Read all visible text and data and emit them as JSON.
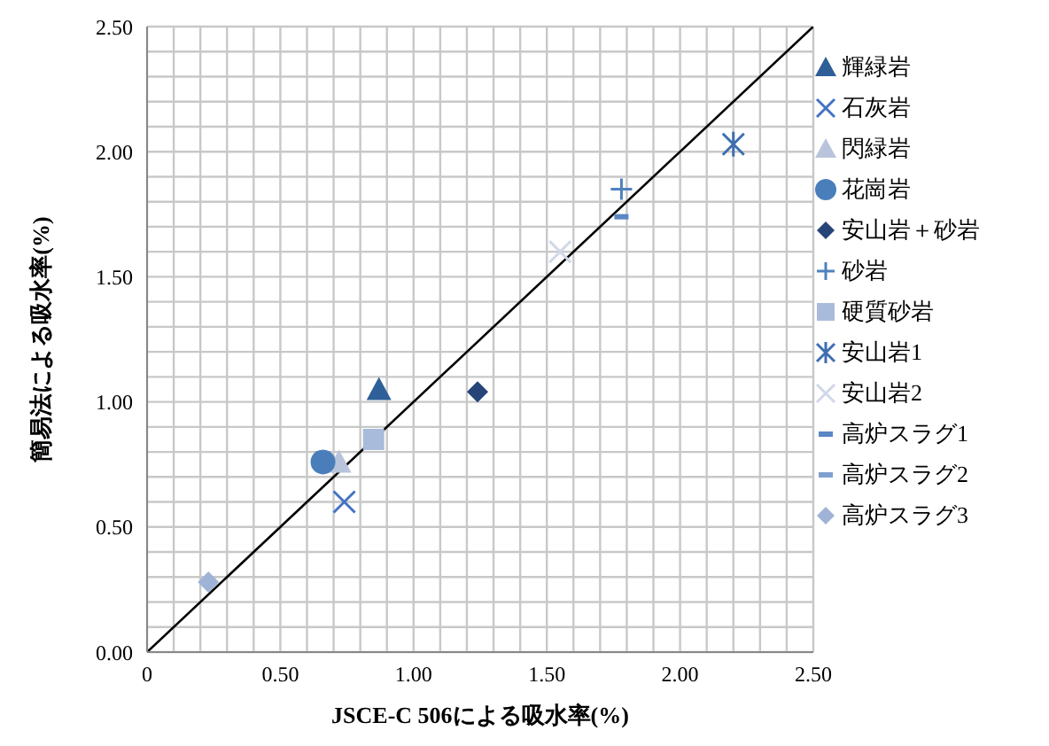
{
  "chart_data": {
    "type": "scatter",
    "xlabel": "JSCE-C 506による吸水率(%)",
    "ylabel": "簡易法による吸水率(%)",
    "xlim": [
      0,
      2.5
    ],
    "ylim": [
      0,
      2.5
    ],
    "xticks": [
      0,
      {
        "value": 0.1,
        "label": null
      },
      {
        "value": 0.2,
        "label": null
      },
      {
        "value": 0.3,
        "label": null
      },
      {
        "value": 0.4,
        "label": null
      },
      {
        "value": 0.5,
        "label": "0.50"
      },
      {
        "value": 0.6,
        "label": null
      },
      {
        "value": 0.7,
        "label": null
      },
      {
        "value": 0.8,
        "label": null
      },
      {
        "value": 0.9,
        "label": null
      },
      {
        "value": 1,
        "label": "1.00"
      },
      {
        "value": 1.1,
        "label": null
      },
      {
        "value": 1.2,
        "label": null
      },
      {
        "value": 1.3,
        "label": null
      },
      {
        "value": 1.4,
        "label": null
      },
      {
        "value": 1.5,
        "label": "1.50"
      },
      {
        "value": 1.6,
        "label": null
      },
      {
        "value": 1.7,
        "label": null
      },
      {
        "value": 1.8,
        "label": null
      },
      {
        "value": 1.9,
        "label": null
      },
      {
        "value": 2,
        "label": "2.00"
      },
      {
        "value": 2.1,
        "label": null
      },
      {
        "value": 2.2,
        "label": null
      },
      {
        "value": 2.3,
        "label": null
      },
      {
        "value": 2.4,
        "label": null
      },
      {
        "value": 2.5,
        "label": "2.50"
      }
    ],
    "yticks": [
      {
        "value": 0,
        "label": "0.00"
      },
      {
        "value": 0.1,
        "label": null
      },
      {
        "value": 0.2,
        "label": null
      },
      {
        "value": 0.3,
        "label": null
      },
      {
        "value": 0.4,
        "label": null
      },
      {
        "value": 0.5,
        "label": "0.50"
      },
      {
        "value": 0.6,
        "label": null
      },
      {
        "value": 0.7,
        "label": null
      },
      {
        "value": 0.8,
        "label": null
      },
      {
        "value": 0.9,
        "label": null
      },
      {
        "value": 1,
        "label": "1.00"
      },
      {
        "value": 1.1,
        "label": null
      },
      {
        "value": 1.2,
        "label": null
      },
      {
        "value": 1.3,
        "label": null
      },
      {
        "value": 1.4,
        "label": null
      },
      {
        "value": 1.5,
        "label": "1.50"
      },
      {
        "value": 1.6,
        "label": null
      },
      {
        "value": 1.7,
        "label": null
      },
      {
        "value": 1.8,
        "label": null
      },
      {
        "value": 1.9,
        "label": null
      },
      {
        "value": 2,
        "label": "2.00"
      },
      {
        "value": 2.1,
        "label": null
      },
      {
        "value": 2.2,
        "label": null
      },
      {
        "value": 2.3,
        "label": null
      },
      {
        "value": 2.4,
        "label": null
      },
      {
        "value": 2.5,
        "label": "2.50"
      }
    ],
    "grid": true,
    "legend": "right",
    "series": [
      {
        "name": "輝緑岩",
        "color": "#2f5f98",
        "marker": "triangle",
        "x": [
          0.87
        ],
        "values": [
          1.05
        ]
      },
      {
        "name": "石灰岩",
        "color": "#4472c4",
        "marker": "cross",
        "x": [
          0.74
        ],
        "values": [
          0.6
        ]
      },
      {
        "name": "閃緑岩",
        "color": "#b9c4dc",
        "marker": "triangle",
        "x": [
          0.72
        ],
        "values": [
          0.76
        ]
      },
      {
        "name": "花崗岩",
        "color": "#4a7ebb",
        "marker": "circle",
        "x": [
          0.66
        ],
        "values": [
          0.76
        ]
      },
      {
        "name": "安山岩＋砂岩",
        "color": "#264478",
        "marker": "diamond",
        "x": [
          1.24
        ],
        "values": [
          1.04
        ]
      },
      {
        "name": "砂岩",
        "color": "#4f81bd",
        "marker": "plus",
        "x": [
          1.78
        ],
        "values": [
          1.85
        ]
      },
      {
        "name": "硬質砂岩",
        "color": "#a9bbdb",
        "marker": "square",
        "x": [
          0.85
        ],
        "values": [
          0.85
        ]
      },
      {
        "name": "安山岩1",
        "color": "#3e6eb0",
        "marker": "cross",
        "x": [
          2.2
        ],
        "values": [
          2.03
        ]
      },
      {
        "name": "安山岩2",
        "color": "#d0d8e8",
        "marker": "cross",
        "x": [
          1.55
        ],
        "values": [
          1.6
        ]
      },
      {
        "name": "高炉スラグ1",
        "color": "#5b87c4",
        "marker": "square",
        "x": [
          1.78
        ],
        "values": [
          1.74
        ]
      },
      {
        "name": "高炉スラグ2",
        "color": "#7f9fcf",
        "marker": "square",
        "x": [
          null
        ],
        "values": [
          null
        ]
      },
      {
        "name": "高炉スラグ3",
        "color": "#9fb3d6",
        "marker": "diamond",
        "x": [
          0.23
        ],
        "values": [
          0.28
        ]
      },
      {
        "type": "line",
        "color": "#000000",
        "x": [
          0,
          2.5
        ],
        "values": [
          0,
          2.5
        ]
      }
    ]
  }
}
